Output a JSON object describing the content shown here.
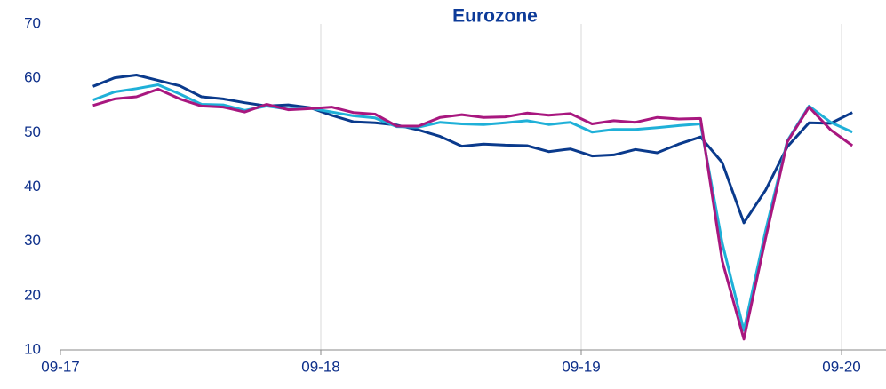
{
  "chart_data": {
    "type": "line",
    "title": "Eurozone",
    "x": [
      "10-17",
      "11-17",
      "12-17",
      "01-18",
      "02-18",
      "03-18",
      "04-18",
      "05-18",
      "06-18",
      "07-18",
      "08-18",
      "09-18",
      "10-18",
      "11-18",
      "12-18",
      "01-19",
      "02-19",
      "03-19",
      "04-19",
      "05-19",
      "06-19",
      "07-19",
      "08-19",
      "09-19",
      "10-19",
      "11-19",
      "12-19",
      "01-20",
      "02-20",
      "03-20",
      "04-20",
      "05-20",
      "06-20",
      "07-20",
      "08-20",
      "09-20"
    ],
    "series": [
      {
        "color": "#0a3a8c",
        "values": [
          58.5,
          60.1,
          60.6,
          59.6,
          58.6,
          56.6,
          56.2,
          55.5,
          54.9,
          55.1,
          54.6,
          53.2,
          52.0,
          51.8,
          51.4,
          50.5,
          49.3,
          47.5,
          47.9,
          47.7,
          47.6,
          46.5,
          47.0,
          45.7,
          45.9,
          46.9,
          46.3,
          47.9,
          49.2,
          44.5,
          33.4,
          39.4,
          47.4,
          51.8,
          51.7,
          53.7
        ]
      },
      {
        "color": "#1fb0d8",
        "values": [
          56.0,
          57.5,
          58.1,
          58.8,
          57.1,
          55.2,
          55.1,
          54.1,
          54.9,
          54.3,
          54.5,
          53.8,
          53.1,
          52.7,
          51.1,
          51.0,
          51.9,
          51.6,
          51.5,
          51.8,
          52.2,
          51.5,
          51.9,
          50.1,
          50.6,
          50.6,
          50.9,
          51.3,
          51.6,
          29.7,
          13.6,
          31.9,
          48.5,
          54.9,
          51.9,
          50.1
        ]
      },
      {
        "color": "#a8177f",
        "values": [
          55.0,
          56.2,
          56.6,
          58.0,
          56.2,
          54.9,
          54.7,
          53.8,
          55.2,
          54.2,
          54.4,
          54.7,
          53.7,
          53.4,
          51.2,
          51.2,
          52.8,
          53.3,
          52.8,
          52.9,
          53.6,
          53.2,
          53.5,
          51.6,
          52.2,
          51.9,
          52.8,
          52.5,
          52.6,
          26.4,
          12.0,
          30.5,
          48.3,
          54.7,
          50.5,
          47.6
        ]
      }
    ],
    "xticks": [
      "09-17",
      "09-18",
      "09-19",
      "09-20"
    ],
    "ylim": [
      10,
      70
    ],
    "yticks": [
      10,
      20,
      30,
      40,
      50,
      60,
      70
    ],
    "grid": "x"
  }
}
